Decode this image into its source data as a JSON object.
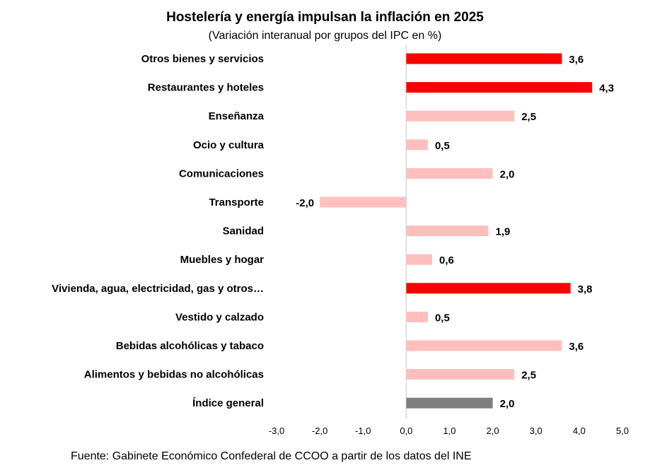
{
  "chart_data": {
    "type": "bar",
    "orientation": "horizontal",
    "title": "Hostelería y energía impulsan la inflación en 2025",
    "subtitle": "(Variación interanual por grupos del IPC en %)",
    "categories": [
      "Otros bienes y servicios",
      "Restaurantes y hoteles",
      "Enseñanza",
      "Ocio y cultura",
      "Comunicaciones",
      "Transporte",
      "Sanidad",
      "Muebles y hogar",
      "Vivienda, agua, electricidad, gas y otros…",
      "Vestido y calzado",
      "Bebidas alcohólicas y tabaco",
      "Alimentos y bebidas no alcohólicas",
      "Índice general"
    ],
    "values": [
      3.6,
      4.3,
      2.5,
      0.5,
      2.0,
      -2.0,
      1.9,
      0.6,
      3.8,
      0.5,
      3.6,
      2.5,
      2.0
    ],
    "value_labels": [
      "3,6",
      "4,3",
      "2,5",
      "0,5",
      "2,0",
      "-2,0",
      "1,9",
      "0,6",
      "3,8",
      "0,5",
      "3,6",
      "2,5",
      "2,0"
    ],
    "bar_colors": [
      "#ff0000",
      "#ff0000",
      "#ffbfbf",
      "#ffbfbf",
      "#ffbfbf",
      "#ffbfbf",
      "#ffbfbf",
      "#ffbfbf",
      "#ff0000",
      "#ffbfbf",
      "#ffbfbf",
      "#ffbfbf",
      "#7f7f7f"
    ],
    "xlim": [
      -3.0,
      5.0
    ],
    "xticks": [
      -3.0,
      -2.0,
      -1.0,
      0.0,
      1.0,
      2.0,
      3.0,
      4.0,
      5.0
    ],
    "xtick_labels": [
      "-3,0",
      "-2,0",
      "-1,0",
      "0,0",
      "1,0",
      "2,0",
      "3,0",
      "4,0",
      "5,0"
    ],
    "grid": false,
    "legend": "none",
    "xlabel": "",
    "ylabel": ""
  },
  "source": "Fuente: Gabinete Económico Confederal de CCOO a partir de los datos del INE",
  "colors": {
    "axis": "#d9d9d9"
  }
}
